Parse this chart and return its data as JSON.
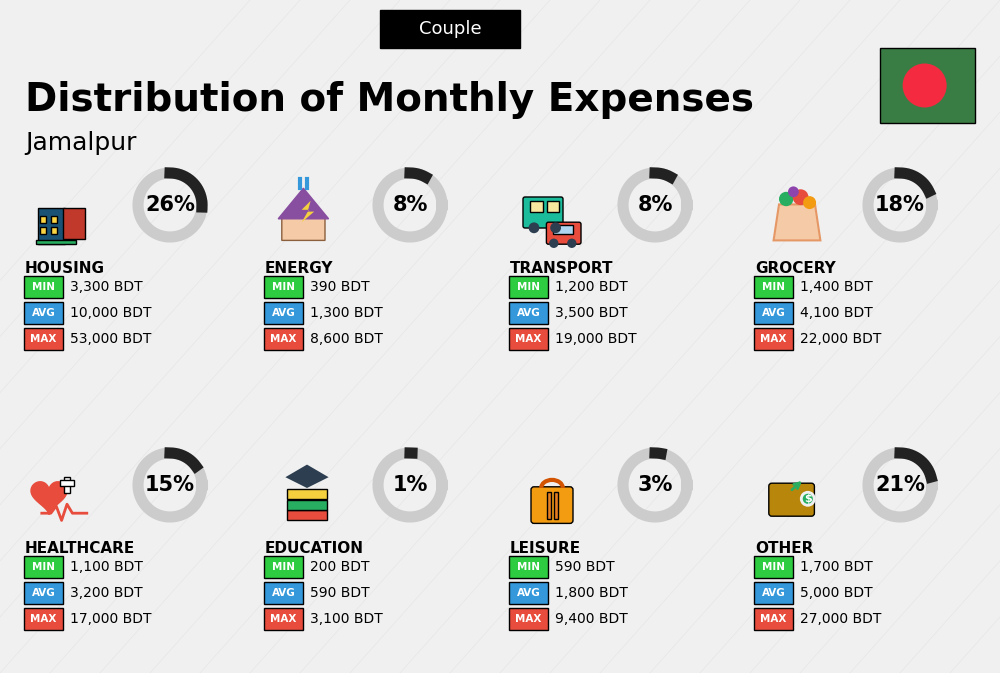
{
  "title": "Distribution of Monthly Expenses",
  "subtitle": "Jamalpur",
  "header_label": "Couple",
  "bg_color": "#f0f0f0",
  "categories": [
    {
      "name": "HOUSING",
      "pct": 26,
      "min": "3,300 BDT",
      "avg": "10,000 BDT",
      "max": "53,000 BDT",
      "icon": "housing",
      "col": 0,
      "row": 0
    },
    {
      "name": "ENERGY",
      "pct": 8,
      "min": "390 BDT",
      "avg": "1,300 BDT",
      "max": "8,600 BDT",
      "icon": "energy",
      "col": 1,
      "row": 0
    },
    {
      "name": "TRANSPORT",
      "pct": 8,
      "min": "1,200 BDT",
      "avg": "3,500 BDT",
      "max": "19,000 BDT",
      "icon": "transport",
      "col": 2,
      "row": 0
    },
    {
      "name": "GROCERY",
      "pct": 18,
      "min": "1,400 BDT",
      "avg": "4,100 BDT",
      "max": "22,000 BDT",
      "icon": "grocery",
      "col": 3,
      "row": 0
    },
    {
      "name": "HEALTHCARE",
      "pct": 15,
      "min": "1,100 BDT",
      "avg": "3,200 BDT",
      "max": "17,000 BDT",
      "icon": "healthcare",
      "col": 0,
      "row": 1
    },
    {
      "name": "EDUCATION",
      "pct": 1,
      "min": "200 BDT",
      "avg": "590 BDT",
      "max": "3,100 BDT",
      "icon": "education",
      "col": 1,
      "row": 1
    },
    {
      "name": "LEISURE",
      "pct": 3,
      "min": "590 BDT",
      "avg": "1,800 BDT",
      "max": "9,400 BDT",
      "icon": "leisure",
      "col": 2,
      "row": 1
    },
    {
      "name": "OTHER",
      "pct": 21,
      "min": "1,700 BDT",
      "avg": "5,000 BDT",
      "max": "27,000 BDT",
      "icon": "other",
      "col": 3,
      "row": 1
    }
  ],
  "color_min": "#2ecc40",
  "color_avg": "#3498db",
  "color_max": "#e74c3c",
  "donut_color": "#222222",
  "donut_bg": "#cccccc",
  "title_fontsize": 28,
  "subtitle_fontsize": 18,
  "header_fontsize": 13,
  "cat_fontsize": 11,
  "val_fontsize": 10,
  "pct_fontsize": 15
}
